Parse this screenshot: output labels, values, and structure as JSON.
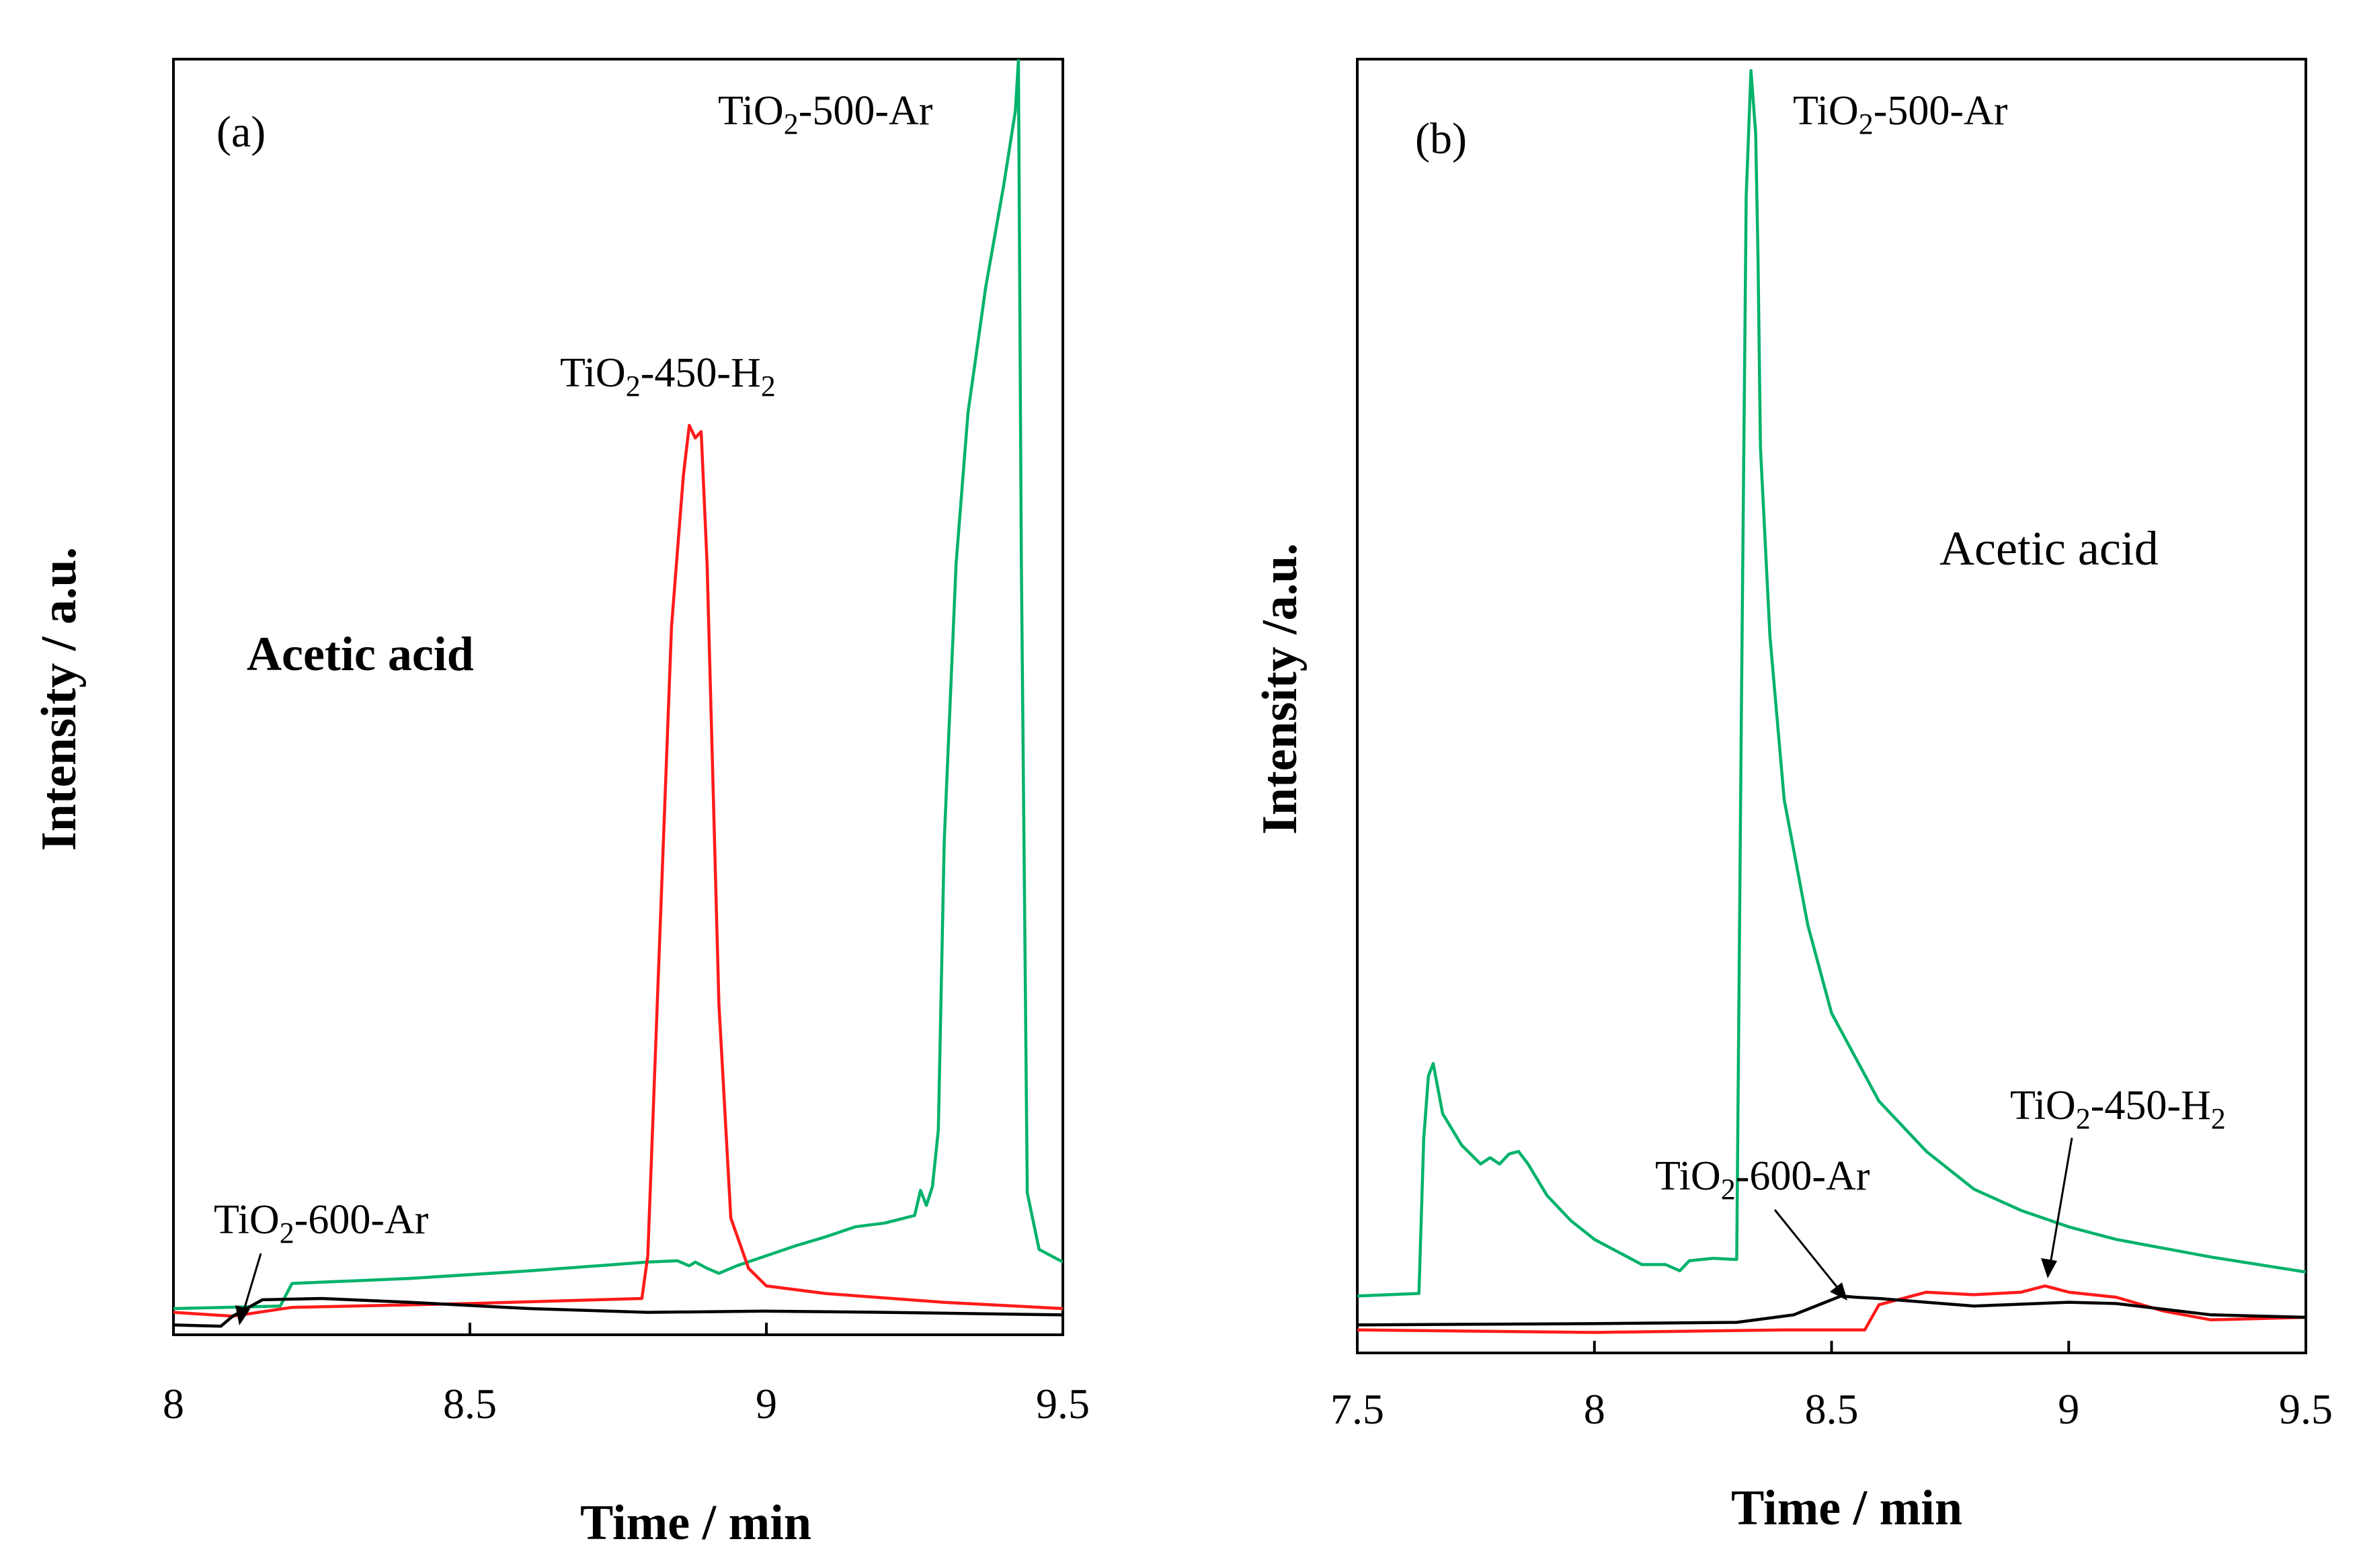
{
  "colors": {
    "TiO2-500-Ar": "#00b26a",
    "TiO2-450-H2": "#ff1a1a",
    "TiO2-600-Ar": "#000000"
  },
  "chart_data": [
    {
      "type": "line",
      "panel_label": "(a)",
      "xlabel": "Time / min",
      "ylabel": "Intensity / a.u.",
      "xlim": [
        8,
        9.5
      ],
      "ylim": [
        0,
        100
      ],
      "xticks": [
        "8",
        "8.5",
        "9",
        "9.5"
      ],
      "xtick_values": [
        8,
        8.5,
        9,
        9.5
      ],
      "compound_label": "Acetic acid",
      "annotations": [
        {
          "base": "TiO",
          "sub": "2",
          "rest": "-500-Ar",
          "sub2": ""
        },
        {
          "base": "TiO",
          "sub": "2",
          "rest": "-450-H",
          "sub2": "2"
        },
        {
          "base": "TiO",
          "sub": "2",
          "rest": "-600-Ar",
          "sub2": ""
        }
      ],
      "series": [
        {
          "name": "TiO2-500-Ar",
          "color": "#00b26a",
          "x": [
            8.0,
            8.18,
            8.2,
            8.4,
            8.6,
            8.8,
            8.85,
            8.87,
            8.88,
            8.9,
            8.92,
            8.95,
            9.0,
            9.05,
            9.1,
            9.15,
            9.2,
            9.25,
            9.26,
            9.27,
            9.28,
            9.29,
            9.3,
            9.32,
            9.34,
            9.37,
            9.4,
            9.42,
            9.425,
            9.43,
            9.44,
            9.46,
            9.5
          ],
          "y": [
            0.8,
            1.0,
            2.8,
            3.2,
            3.8,
            4.5,
            4.6,
            4.2,
            4.5,
            4.0,
            3.6,
            4.2,
            5.0,
            5.8,
            6.5,
            7.3,
            7.6,
            8.2,
            10.2,
            9.0,
            10.5,
            15.0,
            38.0,
            60.0,
            72.0,
            82.0,
            90.0,
            96.0,
            100.0,
            60.0,
            10.0,
            5.5,
            4.5
          ]
        },
        {
          "name": "TiO2-450-H2",
          "color": "#ff1a1a",
          "x": [
            8.0,
            8.1,
            8.2,
            8.5,
            8.79,
            8.8,
            8.82,
            8.84,
            8.86,
            8.87,
            8.88,
            8.89,
            8.9,
            8.92,
            8.94,
            8.97,
            9.0,
            9.1,
            9.3,
            9.5
          ],
          "y": [
            0.5,
            0.2,
            0.9,
            1.2,
            1.6,
            5.0,
            30.0,
            55.0,
            67.0,
            71.0,
            70.0,
            70.5,
            60.0,
            25.0,
            8.0,
            4.0,
            2.6,
            2.0,
            1.3,
            0.8
          ]
        },
        {
          "name": "TiO2-600-Ar",
          "color": "#000000",
          "x": [
            8.0,
            8.08,
            8.1,
            8.15,
            8.25,
            8.4,
            8.6,
            8.8,
            9.0,
            9.2,
            9.5
          ],
          "y": [
            -0.5,
            -0.6,
            0.2,
            1.5,
            1.6,
            1.3,
            0.8,
            0.5,
            0.6,
            0.5,
            0.3
          ]
        }
      ]
    },
    {
      "type": "line",
      "panel_label": "(b)",
      "xlabel": "Time / min",
      "ylabel": "Intensity /a.u.",
      "xlim": [
        7.5,
        9.5
      ],
      "ylim": [
        0,
        100
      ],
      "xticks": [
        "7.5",
        "8",
        "8.5",
        "9",
        "9.5"
      ],
      "xtick_values": [
        7.5,
        8,
        8.5,
        9,
        9.5
      ],
      "compound_label": "Acetic  acid",
      "annotations": [
        {
          "base": "TiO",
          "sub": "2",
          "rest": "-500-Ar",
          "sub2": ""
        },
        {
          "base": "TiO",
          "sub": "2",
          "rest": "-450-H",
          "sub2": "2"
        },
        {
          "base": "TiO",
          "sub": "2",
          "rest": "-600-Ar",
          "sub2": ""
        }
      ],
      "series": [
        {
          "name": "TiO2-500-Ar",
          "color": "#00b26a",
          "x": [
            7.5,
            7.63,
            7.64,
            7.65,
            7.66,
            7.68,
            7.72,
            7.76,
            7.78,
            7.8,
            7.82,
            7.84,
            7.86,
            7.9,
            7.95,
            8.0,
            8.05,
            8.1,
            8.15,
            8.18,
            8.2,
            8.25,
            8.3,
            8.31,
            8.32,
            8.33,
            8.34,
            8.345,
            8.35,
            8.37,
            8.4,
            8.45,
            8.5,
            8.6,
            8.7,
            8.8,
            8.9,
            9.0,
            9.1,
            9.2,
            9.3,
            9.4,
            9.5
          ],
          "y": [
            2.5,
            2.7,
            15.0,
            20.0,
            21.0,
            17.0,
            14.5,
            13.0,
            13.5,
            13.0,
            13.8,
            14.0,
            13.0,
            10.5,
            8.5,
            7.0,
            6.0,
            5.0,
            5.0,
            4.5,
            5.3,
            5.5,
            5.4,
            50.0,
            90.0,
            100.0,
            95.0,
            85.0,
            70.0,
            55.0,
            42.0,
            32.0,
            25.0,
            18.0,
            14.0,
            11.0,
            9.3,
            8.0,
            7.0,
            6.3,
            5.6,
            5.0,
            4.4
          ]
        },
        {
          "name": "TiO2-450-H2",
          "color": "#ff1a1a",
          "x": [
            7.5,
            8.0,
            8.4,
            8.57,
            8.6,
            8.7,
            8.8,
            8.9,
            8.95,
            9.0,
            9.1,
            9.2,
            9.3,
            9.5
          ],
          "y": [
            -0.2,
            -0.4,
            -0.2,
            -0.2,
            1.8,
            2.8,
            2.6,
            2.8,
            3.3,
            2.8,
            2.4,
            1.3,
            0.6,
            0.8
          ]
        },
        {
          "name": "TiO2-600-Ar",
          "color": "#000000",
          "x": [
            7.5,
            8.0,
            8.3,
            8.42,
            8.48,
            8.52,
            8.55,
            8.6,
            8.8,
            9.0,
            9.1,
            9.3,
            9.5
          ],
          "y": [
            0.2,
            0.3,
            0.4,
            1.0,
            1.9,
            2.5,
            2.4,
            2.3,
            1.7,
            2.0,
            1.9,
            1.0,
            0.8
          ]
        }
      ]
    }
  ]
}
